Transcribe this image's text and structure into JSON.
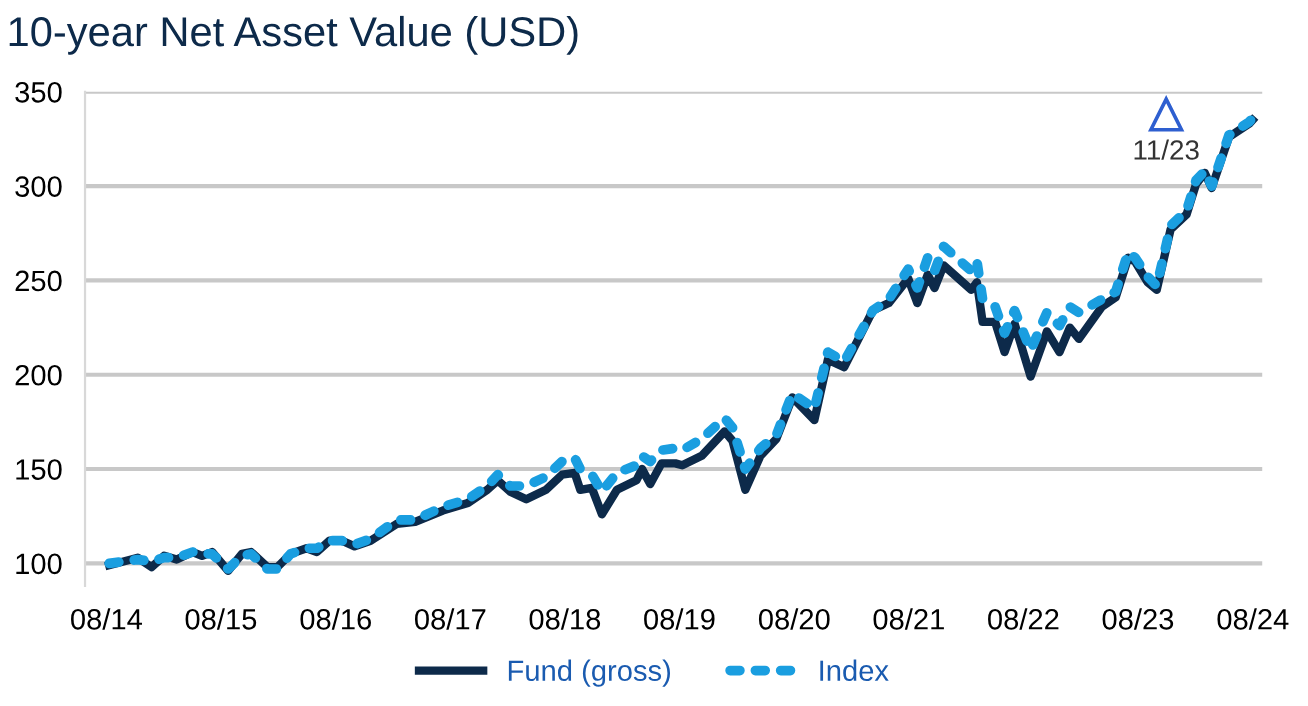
{
  "chart_data": {
    "type": "line",
    "title": "10-year Net Asset Value (USD)",
    "x": [
      "2014-09-10",
      "2014-12-10",
      "2015-01-23",
      "2015-03-04",
      "2015-04-13",
      "2015-06-03",
      "2015-07-03",
      "2015-08-04",
      "2015-09-24",
      "2015-11-07",
      "2015-12-06",
      "2016-01-27",
      "2016-02-28",
      "2016-04-10",
      "2016-05-31",
      "2016-07-03",
      "2016-08-12",
      "2016-09-21",
      "2016-10-31",
      "2016-12-21",
      "2017-03-15",
      "2017-05-12",
      "2017-08-08",
      "2017-10-27",
      "2017-12-28",
      "2018-01-30",
      "2018-03-11",
      "2018-05-01",
      "2018-07-03",
      "2018-08-23",
      "2018-10-02",
      "2018-10-20",
      "2018-11-26",
      "2018-12-28",
      "2019-02-14",
      "2019-04-17",
      "2019-05-05",
      "2019-05-31",
      "2019-07-06",
      "2019-08-19",
      "2019-09-10",
      "2019-11-11",
      "2020-01-23",
      "2020-02-17",
      "2020-03-29",
      "2020-05-16",
      "2020-07-06",
      "2020-08-26",
      "2020-11-04",
      "2020-12-17",
      "2021-02-07",
      "2021-05-09",
      "2021-06-29",
      "2021-08-30",
      "2021-09-28",
      "2021-10-31",
      "2021-11-22",
      "2021-12-21",
      "2022-03-19",
      "2022-04-06",
      "2022-04-24",
      "2022-06-03",
      "2022-07-03",
      "2022-08-04",
      "2022-09-24",
      "2022-11-15",
      "2022-12-25",
      "2023-01-27",
      "2023-02-25",
      "2023-05-09",
      "2023-06-22",
      "2023-08-01",
      "2023-08-23",
      "2023-10-02",
      "2023-10-31",
      "2023-12-14",
      "2024-02-03",
      "2024-03-04",
      "2024-04-01",
      "2024-04-23",
      "2024-06-17",
      "2024-08-20",
      "2024-08-31"
    ],
    "series": [
      {
        "name": "Fund (gross)",
        "color": "#0d2a4a",
        "line_style": "solid",
        "values": [
          99,
          103,
          98,
          104,
          102,
          106,
          104,
          106,
          96,
          105,
          106,
          98,
          98,
          105,
          108,
          106,
          112,
          112,
          109,
          112,
          121,
          122,
          128,
          132,
          139,
          144,
          138,
          134,
          139,
          147,
          148,
          139,
          140,
          126,
          139,
          144,
          150,
          142,
          153,
          153,
          152,
          157,
          170,
          165,
          139,
          157,
          166,
          188,
          176,
          208,
          204,
          234,
          238,
          251,
          238,
          253,
          246,
          258,
          245,
          249,
          228,
          228,
          212,
          227,
          199,
          223,
          212,
          225,
          219,
          236,
          241,
          262,
          260,
          249,
          245,
          277,
          285,
          301,
          307,
          299,
          326,
          333,
          335
        ]
      },
      {
        "name": "Index",
        "color": "#1a9ee0",
        "line_style": "dotted",
        "values": [
          100,
          102,
          101,
          103,
          103,
          106,
          105,
          105,
          97,
          104,
          105,
          97,
          97,
          105,
          108,
          108,
          112,
          112,
          110,
          113,
          123,
          123,
          130,
          134,
          141,
          147,
          141,
          141,
          146,
          154,
          156,
          150,
          147,
          138,
          148,
          152,
          157,
          154,
          160,
          161,
          160,
          166,
          177,
          172,
          150,
          161,
          168,
          190,
          182,
          212,
          207,
          234,
          240,
          256,
          246,
          262,
          255,
          268,
          255,
          260,
          240,
          236,
          222,
          234,
          213,
          233,
          226,
          236,
          233,
          240,
          244,
          265,
          262,
          252,
          247,
          279,
          287,
          303,
          308,
          300,
          327,
          334,
          336
        ]
      }
    ],
    "xlim": [
      "2014-06-25",
      "2024-10-01"
    ],
    "xticks": [
      {
        "value": "2014-09-01",
        "label": "08/14"
      },
      {
        "value": "2015-09-01",
        "label": "08/15"
      },
      {
        "value": "2016-09-01",
        "label": "08/16"
      },
      {
        "value": "2017-09-01",
        "label": "08/17"
      },
      {
        "value": "2018-09-01",
        "label": "08/18"
      },
      {
        "value": "2019-09-01",
        "label": "08/19"
      },
      {
        "value": "2020-09-01",
        "label": "08/20"
      },
      {
        "value": "2021-09-01",
        "label": "08/21"
      },
      {
        "value": "2022-09-01",
        "label": "08/22"
      },
      {
        "value": "2023-09-01",
        "label": "08/23"
      },
      {
        "value": "2024-09-01",
        "label": "08/24"
      }
    ],
    "ylim": [
      88,
      350
    ],
    "yticks": [
      100,
      150,
      200,
      250,
      300,
      350
    ],
    "grid": "y",
    "legend": "bottom",
    "marker": "none",
    "annotations": [
      {
        "text": "11/23",
        "x": "2023-11-30",
        "y": 338
      }
    ]
  }
}
